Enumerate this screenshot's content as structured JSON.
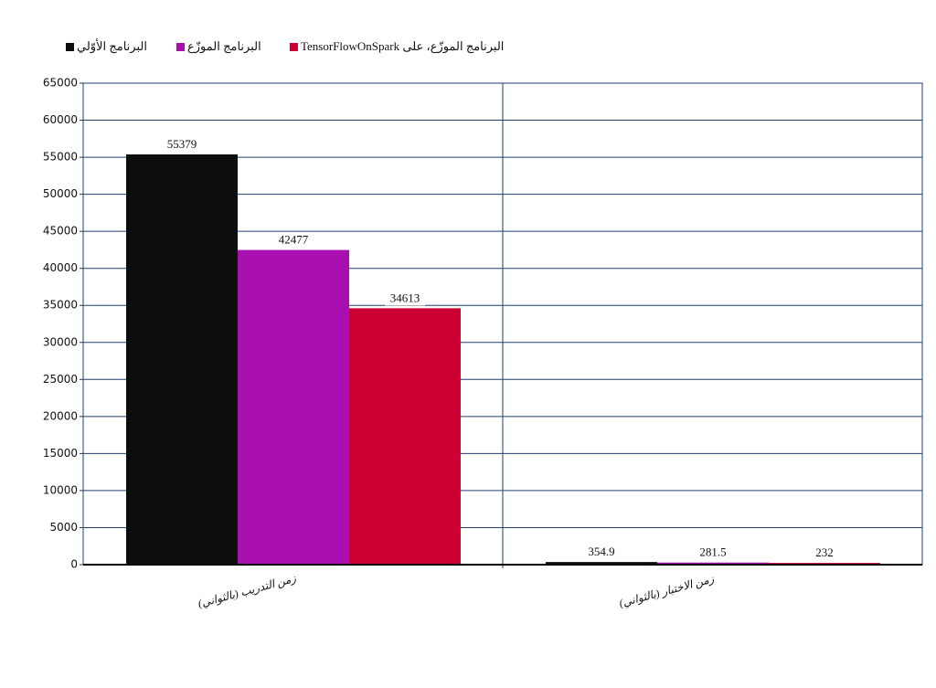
{
  "chart_data": {
    "type": "bar",
    "categories": [
      "زمن التدريب (بالثواني)",
      "زمن الاختبار (بالثواني)"
    ],
    "series": [
      {
        "name": "البرنامج الأوّلي",
        "color": "#0d0d0d",
        "values": [
          55379,
          354.9
        ]
      },
      {
        "name": "البرنامج الموزّع",
        "color": "#a80fae",
        "values": [
          42477,
          281.5
        ]
      },
      {
        "name": "البرنامج الموزّع، على TensorFlowOnSpark",
        "color": "#cc0033",
        "values": [
          34613,
          232
        ]
      }
    ],
    "ylim": [
      0,
      65000
    ],
    "yticks": [
      0,
      5000,
      10000,
      15000,
      20000,
      25000,
      30000,
      35000,
      40000,
      45000,
      50000,
      55000,
      60000,
      65000
    ],
    "grid": true,
    "legend": "top-left"
  }
}
